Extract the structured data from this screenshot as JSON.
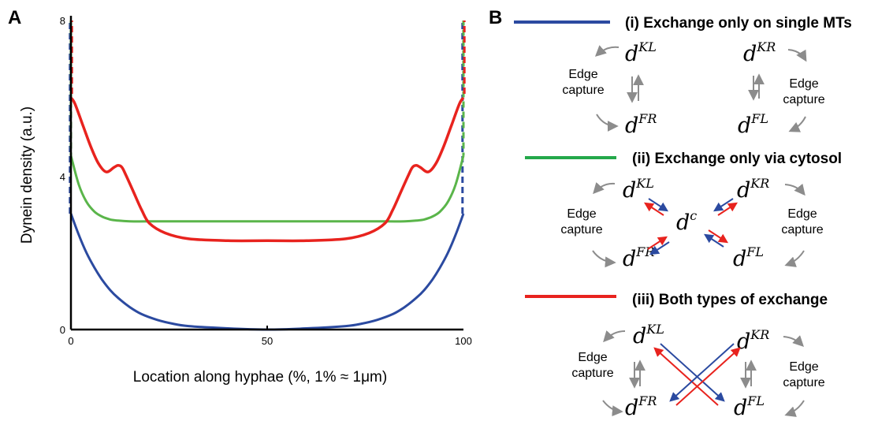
{
  "panel_a": {
    "letter": "A",
    "chart_data": {
      "type": "line",
      "xlabel": "Location along hyphae (%, 1% ≈ 1μm)",
      "ylabel": "Dynein density (a.u.)",
      "xlim": [
        0,
        100
      ],
      "ylim": [
        0,
        8
      ],
      "x_ticks": [
        "0",
        "50",
        "100"
      ],
      "y_ticks": [
        "0",
        "4",
        "8"
      ],
      "grid": false,
      "series": [
        {
          "color": "#2b4aa0",
          "x": [
            0,
            2,
            4,
            6,
            8,
            10,
            12,
            15,
            18,
            22,
            26,
            30,
            40,
            50,
            60,
            70,
            74,
            78,
            82,
            85,
            88,
            90,
            92,
            94,
            96,
            98,
            100
          ],
          "y": [
            3.0,
            2.45,
            1.98,
            1.6,
            1.28,
            1.02,
            0.82,
            0.58,
            0.4,
            0.25,
            0.15,
            0.09,
            0.03,
            0.0,
            0.03,
            0.09,
            0.15,
            0.25,
            0.4,
            0.58,
            0.82,
            1.02,
            1.28,
            1.6,
            1.98,
            2.45,
            3.0
          ],
          "edge_spike_y": 8
        },
        {
          "color": "#5ab54a",
          "x": [
            0,
            2,
            4,
            6,
            8,
            10,
            12,
            15,
            20,
            30,
            50,
            70,
            80,
            85,
            88,
            90,
            92,
            94,
            96,
            98,
            100
          ],
          "y": [
            4.5,
            3.75,
            3.3,
            3.05,
            2.92,
            2.85,
            2.82,
            2.8,
            2.8,
            2.8,
            2.8,
            2.8,
            2.8,
            2.8,
            2.82,
            2.85,
            2.92,
            3.05,
            3.3,
            3.75,
            4.5
          ],
          "edge_spike_y": 8
        },
        {
          "color": "#e8231e",
          "x": [
            0,
            1,
            3,
            5,
            7,
            9,
            11,
            12,
            13,
            14,
            16,
            18,
            20,
            24,
            30,
            40,
            50,
            60,
            70,
            76,
            80,
            82,
            84,
            86,
            87,
            88,
            89,
            91,
            93,
            95,
            97,
            99,
            100
          ],
          "y": [
            6.0,
            5.85,
            5.3,
            4.75,
            4.3,
            4.08,
            4.2,
            4.25,
            4.2,
            4.0,
            3.55,
            3.1,
            2.75,
            2.5,
            2.35,
            2.3,
            2.3,
            2.3,
            2.35,
            2.5,
            2.75,
            3.1,
            3.55,
            4.0,
            4.2,
            4.25,
            4.2,
            4.08,
            4.3,
            4.75,
            5.3,
            5.85,
            6.0
          ],
          "edge_spike_y": 8
        }
      ]
    }
  },
  "panel_b": {
    "letter": "B",
    "colors": {
      "blue": "#2b4aa0",
      "green": "#24a84a",
      "red": "#e8231e",
      "gray": "#8c8c8c"
    },
    "legend": [
      {
        "title": "(i) Exchange only on single MTs",
        "color": "#2b4aa0"
      },
      {
        "title": "(ii) Exchange only via cytosol",
        "color": "#24a84a"
      },
      {
        "title": "(iii) Both types of exchange",
        "color": "#e8231e"
      }
    ],
    "math": {
      "d": "d",
      "KL": "KL",
      "KR": "KR",
      "FR": "FR",
      "FL": "FL",
      "c": "c"
    },
    "edge_label_line1": "Edge",
    "edge_label_line2": "capture"
  }
}
